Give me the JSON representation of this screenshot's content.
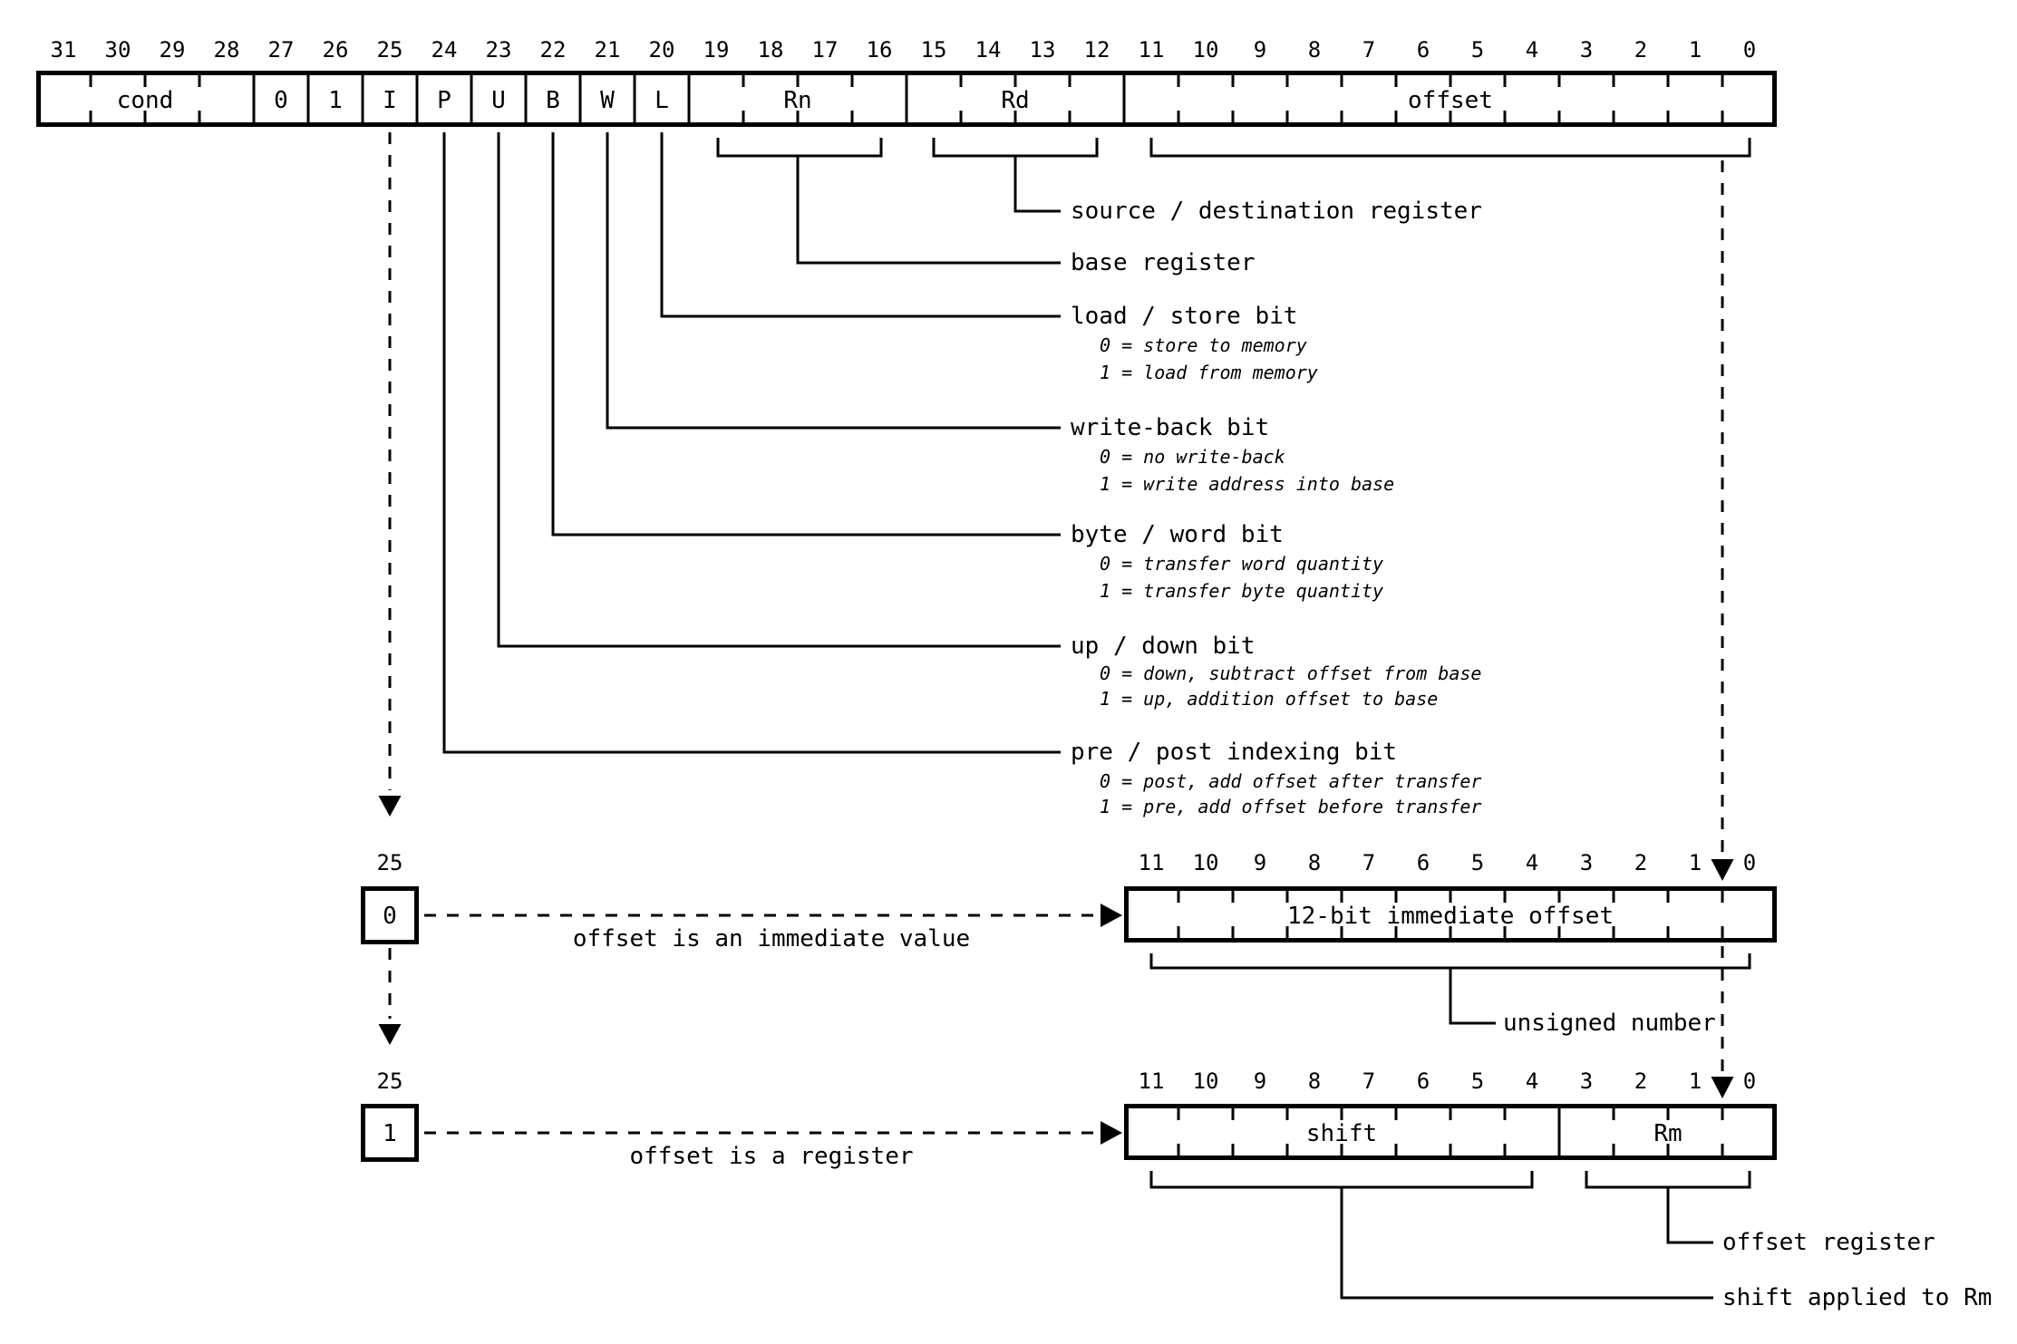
{
  "diagram": {
    "title_semantic": "ARM single data transfer instruction format",
    "colors": {
      "ink": "#000000",
      "background": "#ffffff"
    },
    "main_register": {
      "bit_labels": [
        "31",
        "30",
        "29",
        "28",
        "27",
        "26",
        "25",
        "24",
        "23",
        "22",
        "21",
        "20",
        "19",
        "18",
        "17",
        "16",
        "15",
        "14",
        "13",
        "12",
        "11",
        "10",
        "9",
        "8",
        "7",
        "6",
        "5",
        "4",
        "3",
        "2",
        "1",
        "0"
      ],
      "fields": [
        {
          "label": "cond",
          "hi": 31,
          "lo": 28
        },
        {
          "label": "0",
          "hi": 27,
          "lo": 27
        },
        {
          "label": "1",
          "hi": 26,
          "lo": 26
        },
        {
          "label": "I",
          "hi": 25,
          "lo": 25
        },
        {
          "label": "P",
          "hi": 24,
          "lo": 24
        },
        {
          "label": "U",
          "hi": 23,
          "lo": 23
        },
        {
          "label": "B",
          "hi": 22,
          "lo": 22
        },
        {
          "label": "W",
          "hi": 21,
          "lo": 21
        },
        {
          "label": "L",
          "hi": 20,
          "lo": 20
        },
        {
          "label": "Rn",
          "hi": 19,
          "lo": 16
        },
        {
          "label": "Rd",
          "hi": 15,
          "lo": 12
        },
        {
          "label": "offset",
          "hi": 11,
          "lo": 0
        }
      ]
    },
    "annotations": [
      {
        "label": "source / destination register",
        "details": []
      },
      {
        "label": "base register",
        "details": []
      },
      {
        "label": "load / store bit",
        "details": [
          "0 = store to memory",
          "1 = load from memory"
        ]
      },
      {
        "label": "write-back bit",
        "details": [
          "0 = no write-back",
          "1 = write address into base"
        ]
      },
      {
        "label": "byte / word bit",
        "details": [
          "0 = transfer word quantity",
          "1 = transfer byte quantity"
        ]
      },
      {
        "label": "up / down bit",
        "details": [
          "0 = down, subtract offset from base",
          "1 = up, addition offset to base"
        ]
      },
      {
        "label": "pre / post indexing bit",
        "details": [
          "0 = post, add offset after transfer",
          "1 = pre, add offset before transfer"
        ]
      }
    ],
    "immediate_variant": {
      "bit_label": "25",
      "value": "0",
      "arrow_text": "offset is an immediate value",
      "bit_labels": [
        "11",
        "10",
        "9",
        "8",
        "7",
        "6",
        "5",
        "4",
        "3",
        "2",
        "1",
        "0"
      ],
      "fields": [
        {
          "label": "12-bit immediate offset",
          "hi": 11,
          "lo": 0
        }
      ],
      "note": "unsigned number"
    },
    "register_variant": {
      "bit_label": "25",
      "value": "1",
      "arrow_text": "offset is a register",
      "bit_labels": [
        "11",
        "10",
        "9",
        "8",
        "7",
        "6",
        "5",
        "4",
        "3",
        "2",
        "1",
        "0"
      ],
      "fields": [
        {
          "label": "shift",
          "hi": 11,
          "lo": 4
        },
        {
          "label": "Rm",
          "hi": 3,
          "lo": 0
        }
      ],
      "notes": {
        "rm": "offset register",
        "shift": "shift applied to Rm"
      }
    }
  }
}
